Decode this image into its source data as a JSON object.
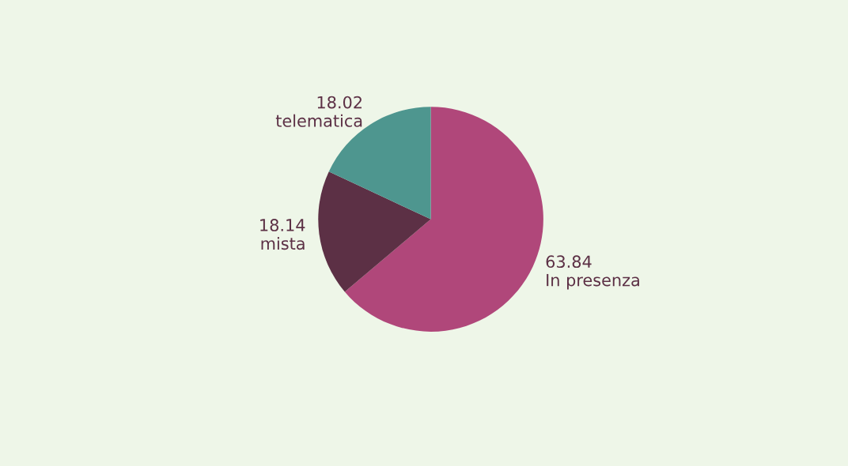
{
  "chart_data": {
    "type": "pie",
    "categories": [
      "In presenza",
      "mista",
      "telematica"
    ],
    "values": [
      63.84,
      18.14,
      18.02
    ],
    "colors": [
      "#b0477a",
      "#5c3045",
      "#4e968f"
    ],
    "data_labels": true,
    "legend": false
  }
}
